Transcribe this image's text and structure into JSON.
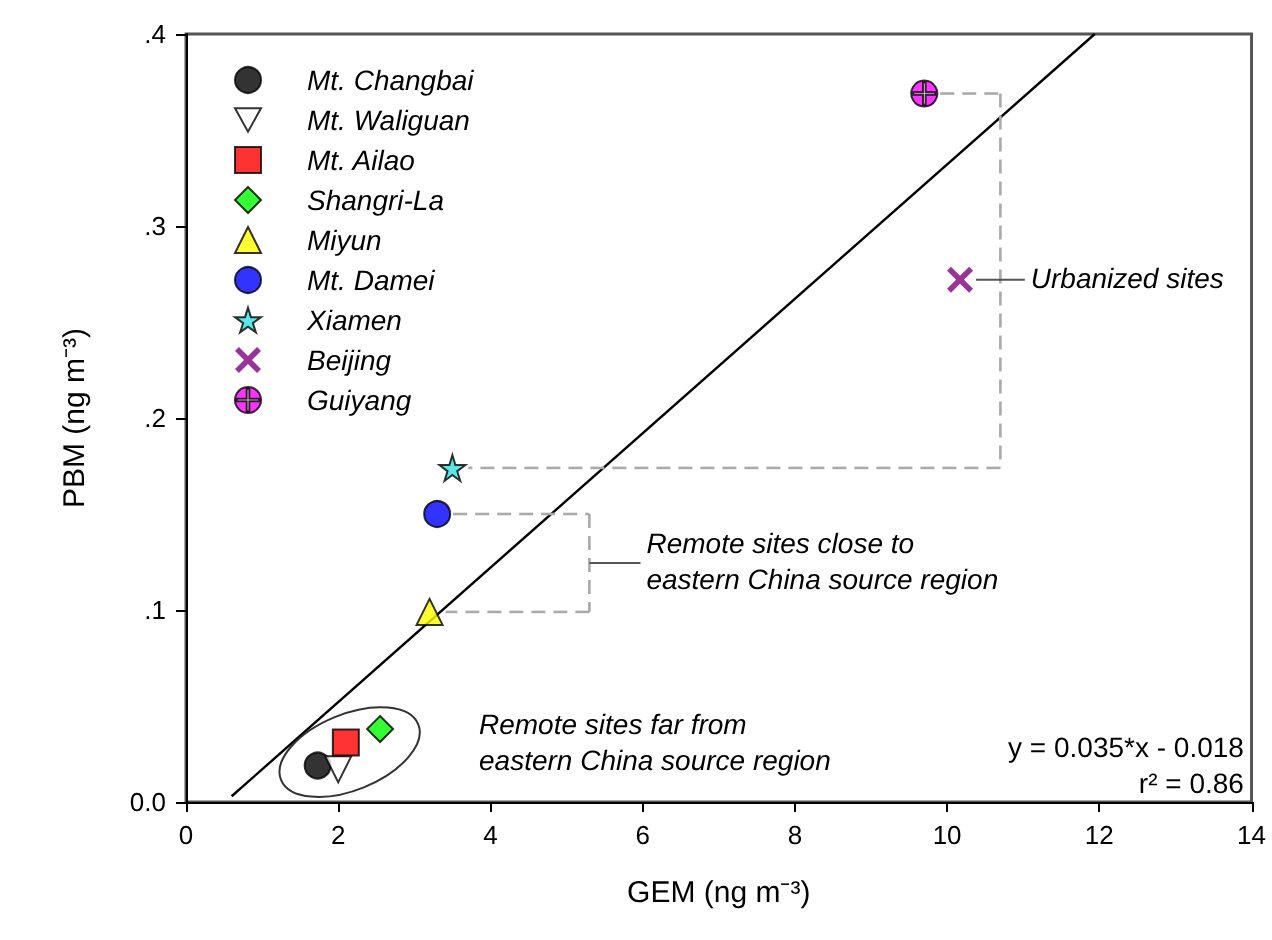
{
  "chart_data": {
    "type": "scatter",
    "xlabel": "GEM (ng m⁻³)",
    "ylabel": "PBM (ng m⁻³)",
    "xlim": [
      0,
      14
    ],
    "xticks": [
      0,
      2,
      4,
      6,
      8,
      10,
      12,
      14
    ],
    "ylim": [
      0,
      0.4
    ],
    "yticks": [
      {
        "value": 0,
        "label": "0.0"
      },
      {
        "value": 0.1,
        "label": ".1"
      },
      {
        "value": 0.2,
        "label": ".2"
      },
      {
        "value": 0.3,
        "label": ".3"
      },
      {
        "value": 0.4,
        "label": ".4"
      }
    ],
    "grid": false,
    "legend": "top left",
    "series": [
      {
        "name": "Mt. Changbai",
        "color": "#000000",
        "marker": "circle",
        "x": [
          1.73
        ],
        "values": [
          0.019
        ]
      },
      {
        "name": "Mt. Waliguan",
        "color": "#ffffff",
        "marker": "triangle-down",
        "x": [
          2.0
        ],
        "values": [
          0.017
        ]
      },
      {
        "name": "Mt. Ailao",
        "color": "#ff0000",
        "marker": "square",
        "x": [
          2.1
        ],
        "values": [
          0.031
        ]
      },
      {
        "name": "Shangri-La",
        "color": "#00ff00",
        "marker": "diamond",
        "x": [
          2.55
        ],
        "values": [
          0.038
        ]
      },
      {
        "name": "Miyun",
        "color": "#ffff00",
        "marker": "triangle",
        "x": [
          3.2
        ],
        "values": [
          0.099
        ]
      },
      {
        "name": "Mt. Damei",
        "color": "#0000ff",
        "x": [
          3.3
        ],
        "values": [
          0.15
        ]
      },
      {
        "name": "Xiamen",
        "color": "#33e0e0",
        "marker": "star",
        "x": [
          3.5
        ],
        "values": [
          0.174
        ]
      },
      {
        "name": "Beijing",
        "color": "#800080",
        "marker": "cross",
        "x": [
          10.17
        ],
        "values": [
          0.272
        ]
      },
      {
        "name": "Guiyang",
        "color": "#ff00ff",
        "marker": "circle-plus",
        "x": [
          9.7
        ],
        "values": [
          0.369
        ]
      },
      {
        "type": "line",
        "color": "#000000",
        "marker": "none",
        "x": [
          0.6,
          11.94
        ],
        "values": [
          0.003,
          0.4
        ]
      }
    ],
    "annotations": [
      "Urbanized sites",
      "Remote sites close to\neastern China source region",
      "Remote sites far from\neastern China source region",
      "y = 0.035*x - 0.018\nr² = 0.86"
    ]
  }
}
